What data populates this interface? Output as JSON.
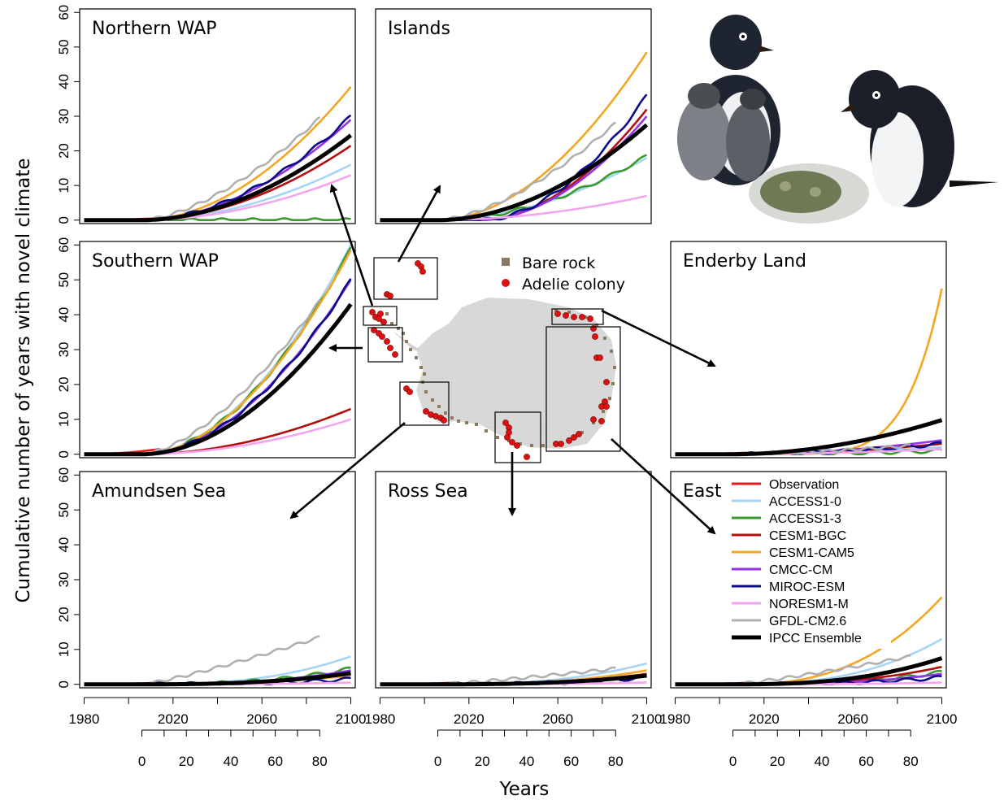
{
  "chart_data": {
    "type": "line",
    "ylabel": "Cumulative number of years with novel climate",
    "xlabel": "Years",
    "x_ticks": [
      "1980",
      "2020",
      "2060",
      "2100"
    ],
    "x2_ticks": [
      "0",
      "20",
      "40",
      "60",
      "80"
    ],
    "y_ticks": [
      "0",
      "10",
      "20",
      "30",
      "40",
      "50",
      "60"
    ],
    "xlim": [
      1978,
      2102
    ],
    "ylim": [
      -1,
      61
    ],
    "map_legend": [
      {
        "label": "Bare rock",
        "color": "#8c7a5e"
      },
      {
        "label": "Adelie colony",
        "color": "#dd1111"
      }
    ],
    "series_styles": [
      {
        "name": "Observation",
        "color": "#e41a1c"
      },
      {
        "name": "ACCESS1-0",
        "color": "#a6d4f5"
      },
      {
        "name": "ACCESS1-3",
        "color": "#3a9a2e"
      },
      {
        "name": "CESM1-BGC",
        "color": "#b30e0e"
      },
      {
        "name": "CESM1-CAM5",
        "color": "#f4a623"
      },
      {
        "name": "CMCC-CM",
        "color": "#9333ea"
      },
      {
        "name": "MIROC-ESM",
        "color": "#0b0b8a"
      },
      {
        "name": "NORESM1-M",
        "color": "#f2a6f0"
      },
      {
        "name": "GFDL-CM2.6",
        "color": "#b0b0b0"
      },
      {
        "name": "IPCC Ensemble",
        "color": "#000000"
      }
    ],
    "panels": [
      {
        "title": "Northern WAP",
        "series_end": [
          0.6,
          16,
          0,
          21.5,
          38.5,
          29,
          30,
          13,
          29.5,
          24.5
        ]
      },
      {
        "title": "Islands",
        "series_end": [
          0,
          18,
          18.5,
          32,
          48.5,
          30,
          36,
          7,
          28,
          27.5
        ]
      },
      {
        "title": "Southern WAP",
        "series_end": [
          1.5,
          60,
          59,
          13,
          58.5,
          50,
          50,
          10,
          44,
          43
        ]
      },
      {
        "title": "Enderby Land",
        "series_end": [
          0.5,
          2,
          1,
          3,
          47.5,
          4,
          3,
          1.5,
          2.5,
          9.8
        ]
      },
      {
        "title": "Amundsen Sea",
        "series_end": [
          0.5,
          8,
          4.5,
          3,
          2.5,
          4,
          1.5,
          0.5,
          13.5,
          3.2
        ]
      },
      {
        "title": "Ross Sea",
        "series_end": [
          0.5,
          6,
          2,
          3,
          4,
          2.5,
          2,
          0.5,
          4.5,
          2.5
        ]
      },
      {
        "title": "East",
        "series_end": [
          0.5,
          13,
          3.5,
          5,
          25,
          3,
          2,
          0.5,
          8,
          7.5
        ]
      }
    ]
  }
}
